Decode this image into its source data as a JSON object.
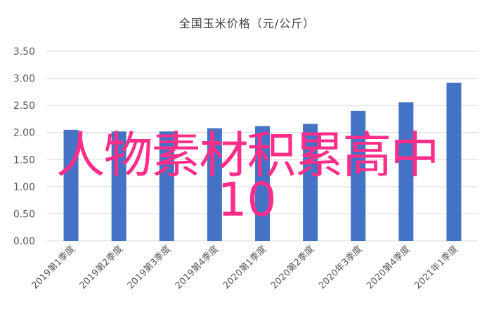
{
  "chart_data": {
    "type": "bar",
    "title": "全国玉米价格（元/公斤）",
    "categories": [
      "2019第1季度",
      "2019第2季度",
      "2019第3季度",
      "2019第4季度",
      "2020第1季度",
      "2020第2季度",
      "2020年3季度",
      "2020第4季度",
      "2021年1季度"
    ],
    "values": [
      2.05,
      2.02,
      2.02,
      2.08,
      2.12,
      2.16,
      2.4,
      2.56,
      2.92
    ],
    "ylim": [
      0,
      3.5
    ],
    "yticks": [
      "0.00",
      "0.50",
      "1.00",
      "1.50",
      "2.00",
      "2.50",
      "3.00",
      "3.50"
    ],
    "grid": true,
    "bar_color": "#4472c4"
  },
  "overlay": {
    "line1": "人物素材积累高中",
    "line2": "10",
    "color": "#ff2d8a"
  }
}
